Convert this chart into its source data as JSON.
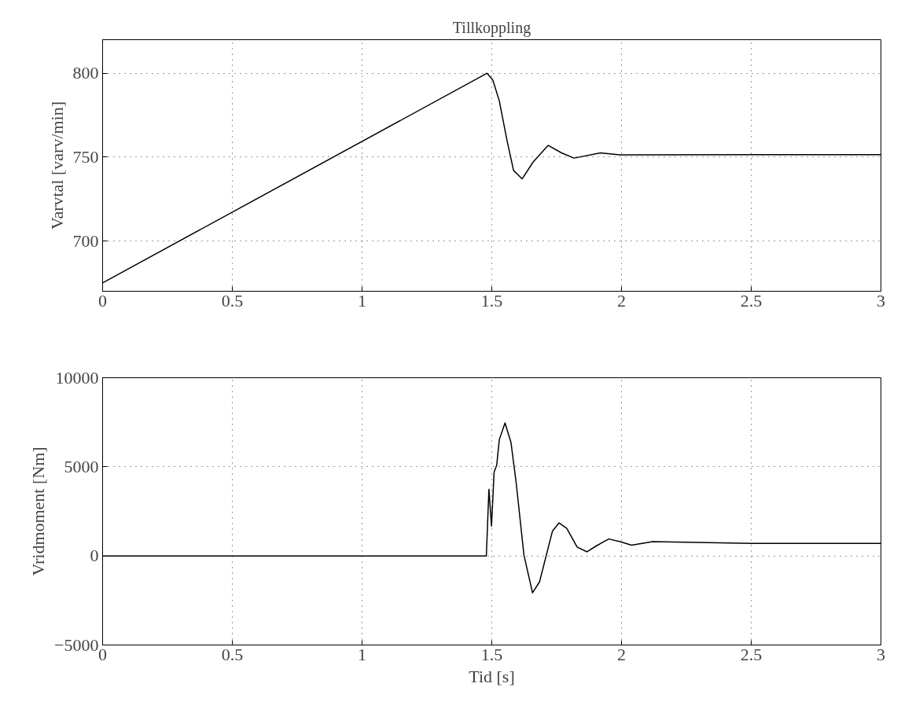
{
  "chart_data": [
    {
      "type": "line",
      "title": "Tillkoppling",
      "ylabel": "Varvtal [varv/min]",
      "x": [
        0,
        1.482,
        1.504,
        1.529,
        1.559,
        1.584,
        1.617,
        1.659,
        1.717,
        1.769,
        1.817,
        1.919,
        1.994,
        2.5,
        3
      ],
      "series": [
        {
          "color": "#000000",
          "values": [
            675,
            800,
            796,
            783.5,
            759.7,
            742,
            737,
            747,
            757,
            752.5,
            749.4,
            752.5,
            751.3,
            751.5,
            751.5
          ]
        }
      ],
      "xlim": [
        0,
        3
      ],
      "xticks": [
        0,
        0.5,
        1,
        1.5,
        2,
        2.5,
        3
      ],
      "ylim": [
        670,
        820
      ],
      "yticks": [
        700,
        750,
        800
      ],
      "grid": true,
      "line_style": "solid"
    },
    {
      "type": "line",
      "xlabel": "Tid [s]",
      "ylabel": "Vridmoment [Nm]",
      "x": [
        0,
        1.479,
        1.489,
        1.499,
        1.509,
        1.519,
        1.529,
        1.551,
        1.574,
        1.594,
        1.624,
        1.657,
        1.684,
        1.734,
        1.759,
        1.789,
        1.829,
        1.867,
        1.904,
        1.951,
        1.994,
        2.039,
        2.12,
        2.5,
        3
      ],
      "series": [
        {
          "color": "#000000",
          "values": [
            0,
            0,
            3740,
            1670,
            4710,
            5090,
            6520,
            7460,
            6370,
            4110,
            45,
            -2070,
            -1460,
            1400,
            1850,
            1550,
            500,
            230,
            570,
            950,
            800,
            600,
            800,
            700,
            700
          ]
        }
      ],
      "xlim": [
        0,
        3
      ],
      "xticks": [
        0,
        0.5,
        1,
        1.5,
        2,
        2.5,
        3
      ],
      "ylim": [
        -5000,
        10000
      ],
      "yticks": [
        {
          "value": -5000,
          "label": "−5000"
        },
        0,
        5000,
        10000
      ],
      "grid": true,
      "line_style": "solid"
    }
  ]
}
